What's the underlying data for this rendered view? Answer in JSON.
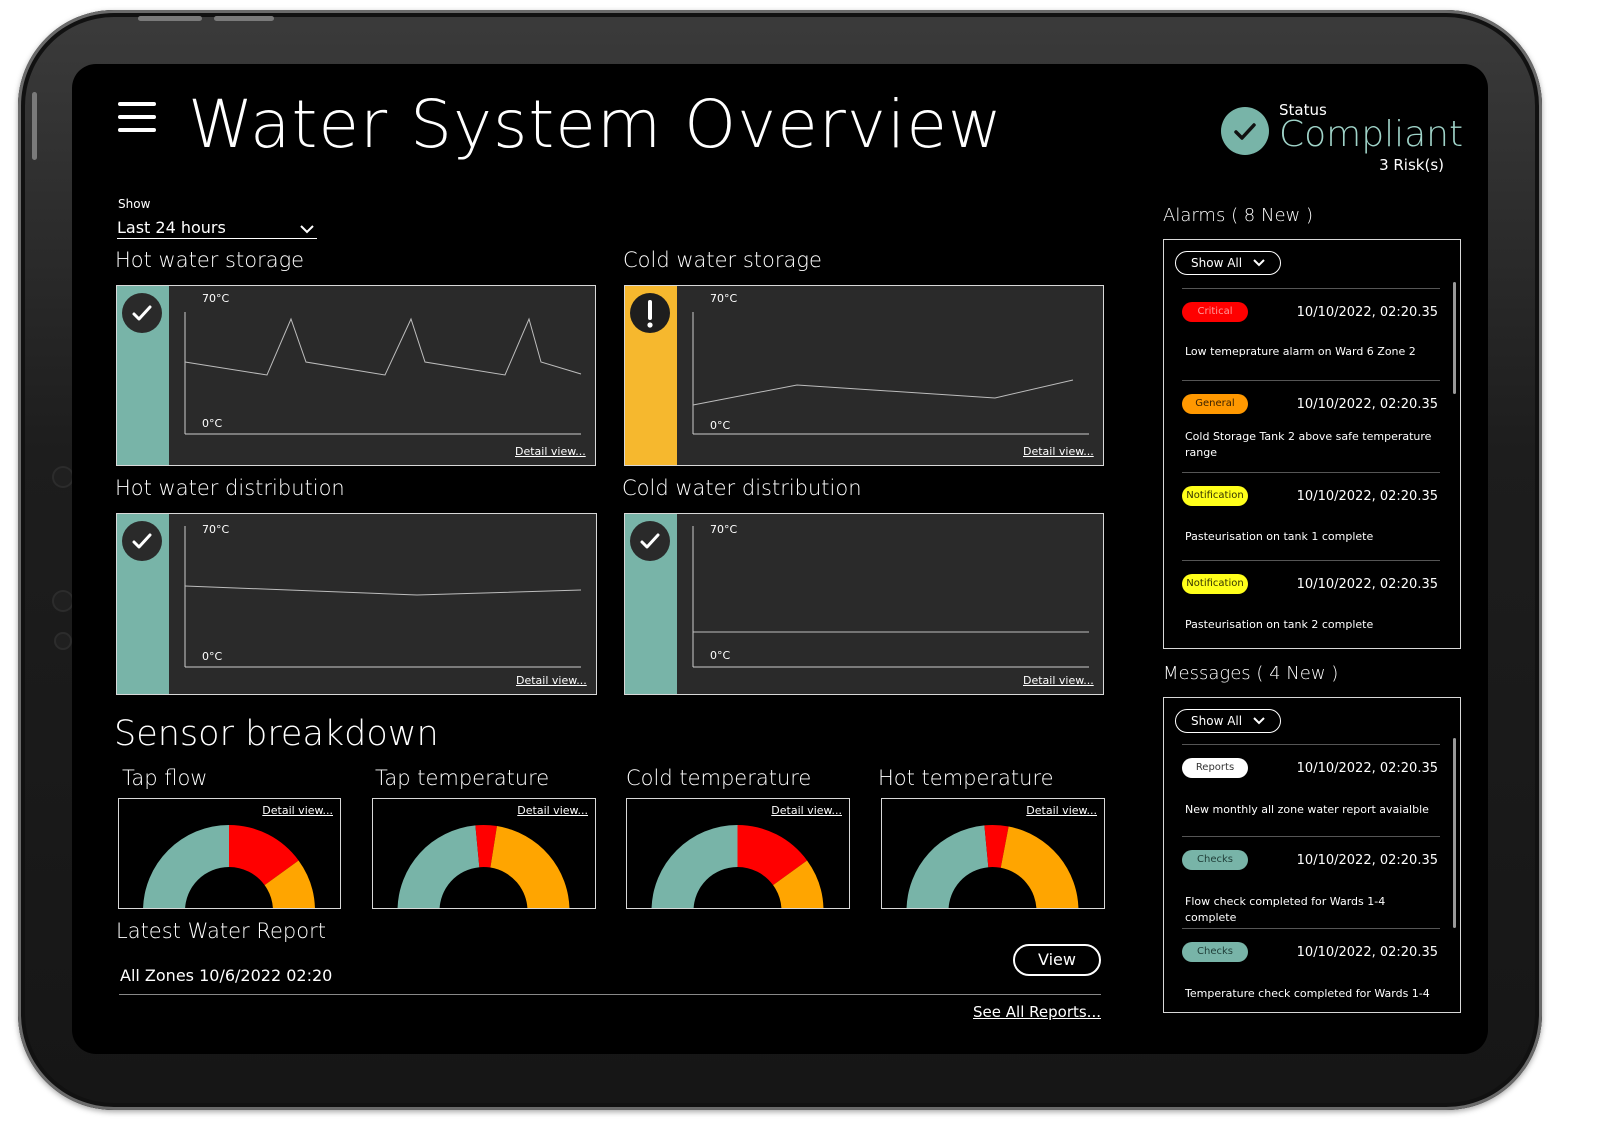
{
  "header": {
    "title": "Water System Overview",
    "status_label": "Status",
    "status_value": "Compliant",
    "risk_count": "3 Risk(s)"
  },
  "filter": {
    "show_label": "Show",
    "period": "Last 24 hours"
  },
  "panels": [
    {
      "title": "Hot water storage",
      "status": "ok",
      "ymax_label": "70°C",
      "ymin_label": "0°C",
      "link": "Detail view..."
    },
    {
      "title": "Cold water storage",
      "status": "warning",
      "ymax_label": "70°C",
      "ymin_label": "0°C",
      "link": "Detail view..."
    },
    {
      "title": "Hot water distribution",
      "status": "ok",
      "ymax_label": "70°C",
      "ymin_label": "0°C",
      "link": "Detail view..."
    },
    {
      "title": "Cold water distribution",
      "status": "ok",
      "ymax_label": "70°C",
      "ymin_label": "0°C",
      "link": "Detail view..."
    }
  ],
  "sensor": {
    "title": "Sensor breakdown",
    "gauges": [
      {
        "title": "Tap flow",
        "link": "Detail view...",
        "segments": [
          {
            "color": "#78b4a8",
            "value": 50
          },
          {
            "color": "#ff0000",
            "value": 30
          },
          {
            "color": "#ffa500",
            "value": 20
          }
        ]
      },
      {
        "title": "Tap temperature",
        "link": "Detail view...",
        "segments": [
          {
            "color": "#78b4a8",
            "value": 47
          },
          {
            "color": "#ff0000",
            "value": 8
          },
          {
            "color": "#ffa500",
            "value": 45
          }
        ]
      },
      {
        "title": "Cold temperature",
        "link": "Detail view...",
        "segments": [
          {
            "color": "#78b4a8",
            "value": 50
          },
          {
            "color": "#ff0000",
            "value": 30
          },
          {
            "color": "#ffa500",
            "value": 20
          }
        ]
      },
      {
        "title": "Hot temperature",
        "link": "Detail view...",
        "segments": [
          {
            "color": "#78b4a8",
            "value": 47
          },
          {
            "color": "#ff0000",
            "value": 9
          },
          {
            "color": "#ffa500",
            "value": 44
          }
        ]
      }
    ]
  },
  "report": {
    "title": "Latest Water Report",
    "entry": "All Zones 10/6/2022 02:20",
    "view_label": "View",
    "see_all": "See All Reports..."
  },
  "alarms": {
    "title": "Alarms ( 8 New )",
    "filter_label": "Show All",
    "items": [
      {
        "tag": "Critical",
        "tag_bg": "#ff0000",
        "tag_fg": "#ff9a9a",
        "time": "10/10/2022, 02:20.35",
        "text": "Low temeprature alarm on Ward 6 Zone 2"
      },
      {
        "tag": "General",
        "tag_bg": "#ff9800",
        "tag_fg": "#3a2200",
        "time": "10/10/2022, 02:20.35",
        "text": "Cold Storage Tank 2 above safe temperature range"
      },
      {
        "tag": "Notification",
        "tag_bg": "#ffff1a",
        "tag_fg": "#333300",
        "time": "10/10/2022, 02:20.35",
        "text": "Pasteurisation on tank 1 complete"
      },
      {
        "tag": "Notification",
        "tag_bg": "#ffff1a",
        "tag_fg": "#333300",
        "time": "10/10/2022, 02:20.35",
        "text": "Pasteurisation on tank 2 complete"
      }
    ]
  },
  "messages": {
    "title": "Messages ( 4 New )",
    "filter_label": "Show All",
    "items": [
      {
        "tag": "Reports",
        "tag_bg": "#ffffff",
        "tag_fg": "#333333",
        "time": "10/10/2022, 02:20.35",
        "text": "New monthly all zone water report avaialble"
      },
      {
        "tag": "Checks",
        "tag_bg": "#78b4a8",
        "tag_fg": "#1f3d37",
        "time": "10/10/2022, 02:20.35",
        "text": "Flow check completed for Wards 1-4 complete"
      },
      {
        "tag": "Checks",
        "tag_bg": "#78b4a8",
        "tag_fg": "#1f3d37",
        "time": "10/10/2022, 02:20.35",
        "text": "Temperature check completed for Wards 1-4"
      }
    ]
  }
}
